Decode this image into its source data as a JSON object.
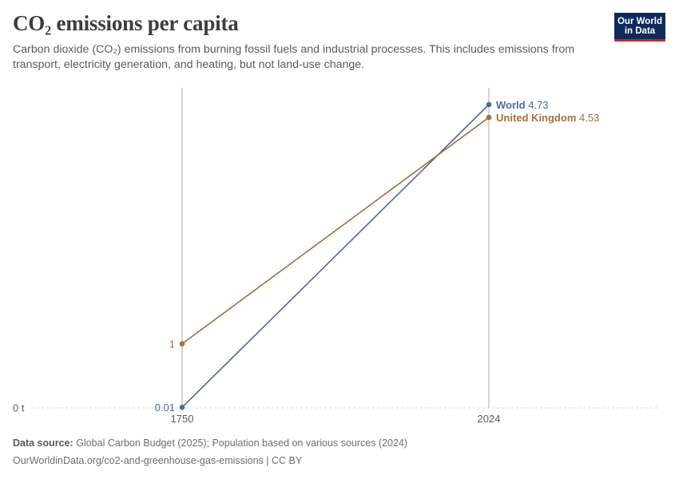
{
  "header": {
    "title": "CO₂ emissions per capita",
    "subtitle": "Carbon dioxide (CO₂) emissions from burning fossil fuels and industrial processes. This includes emissions from transport, electricity generation, and heating, but not land-use change."
  },
  "logo": {
    "line1": "Our World",
    "line2": "in Data",
    "bg_color": "#0f2b5b",
    "accent_color": "#ce261e"
  },
  "chart_data": {
    "type": "line",
    "title": "CO₂ emissions per capita",
    "x": [
      1750,
      2024
    ],
    "x_ticks": [
      "1750",
      "2024"
    ],
    "y_ticks": [
      {
        "value": 0,
        "label": "0 t"
      }
    ],
    "ylim": [
      0,
      4.73
    ],
    "grid": true,
    "series": [
      {
        "name": "World",
        "values": [
          0.01,
          4.73
        ],
        "start_label": "0.01",
        "end_label": "4.73",
        "color": "#4c6a9c"
      },
      {
        "name": "United Kingdom",
        "values": [
          1,
          4.53
        ],
        "start_label": "1",
        "end_label": "4.53",
        "color": "#a2703c"
      }
    ]
  },
  "footer": {
    "source_label": "Data source:",
    "source_text": "Global Carbon Budget (2025); Population based on various sources (2024)",
    "link_text": "OurWorldinData.org/co2-and-greenhouse-gas-emissions",
    "separator": " | ",
    "license": "CC BY"
  }
}
